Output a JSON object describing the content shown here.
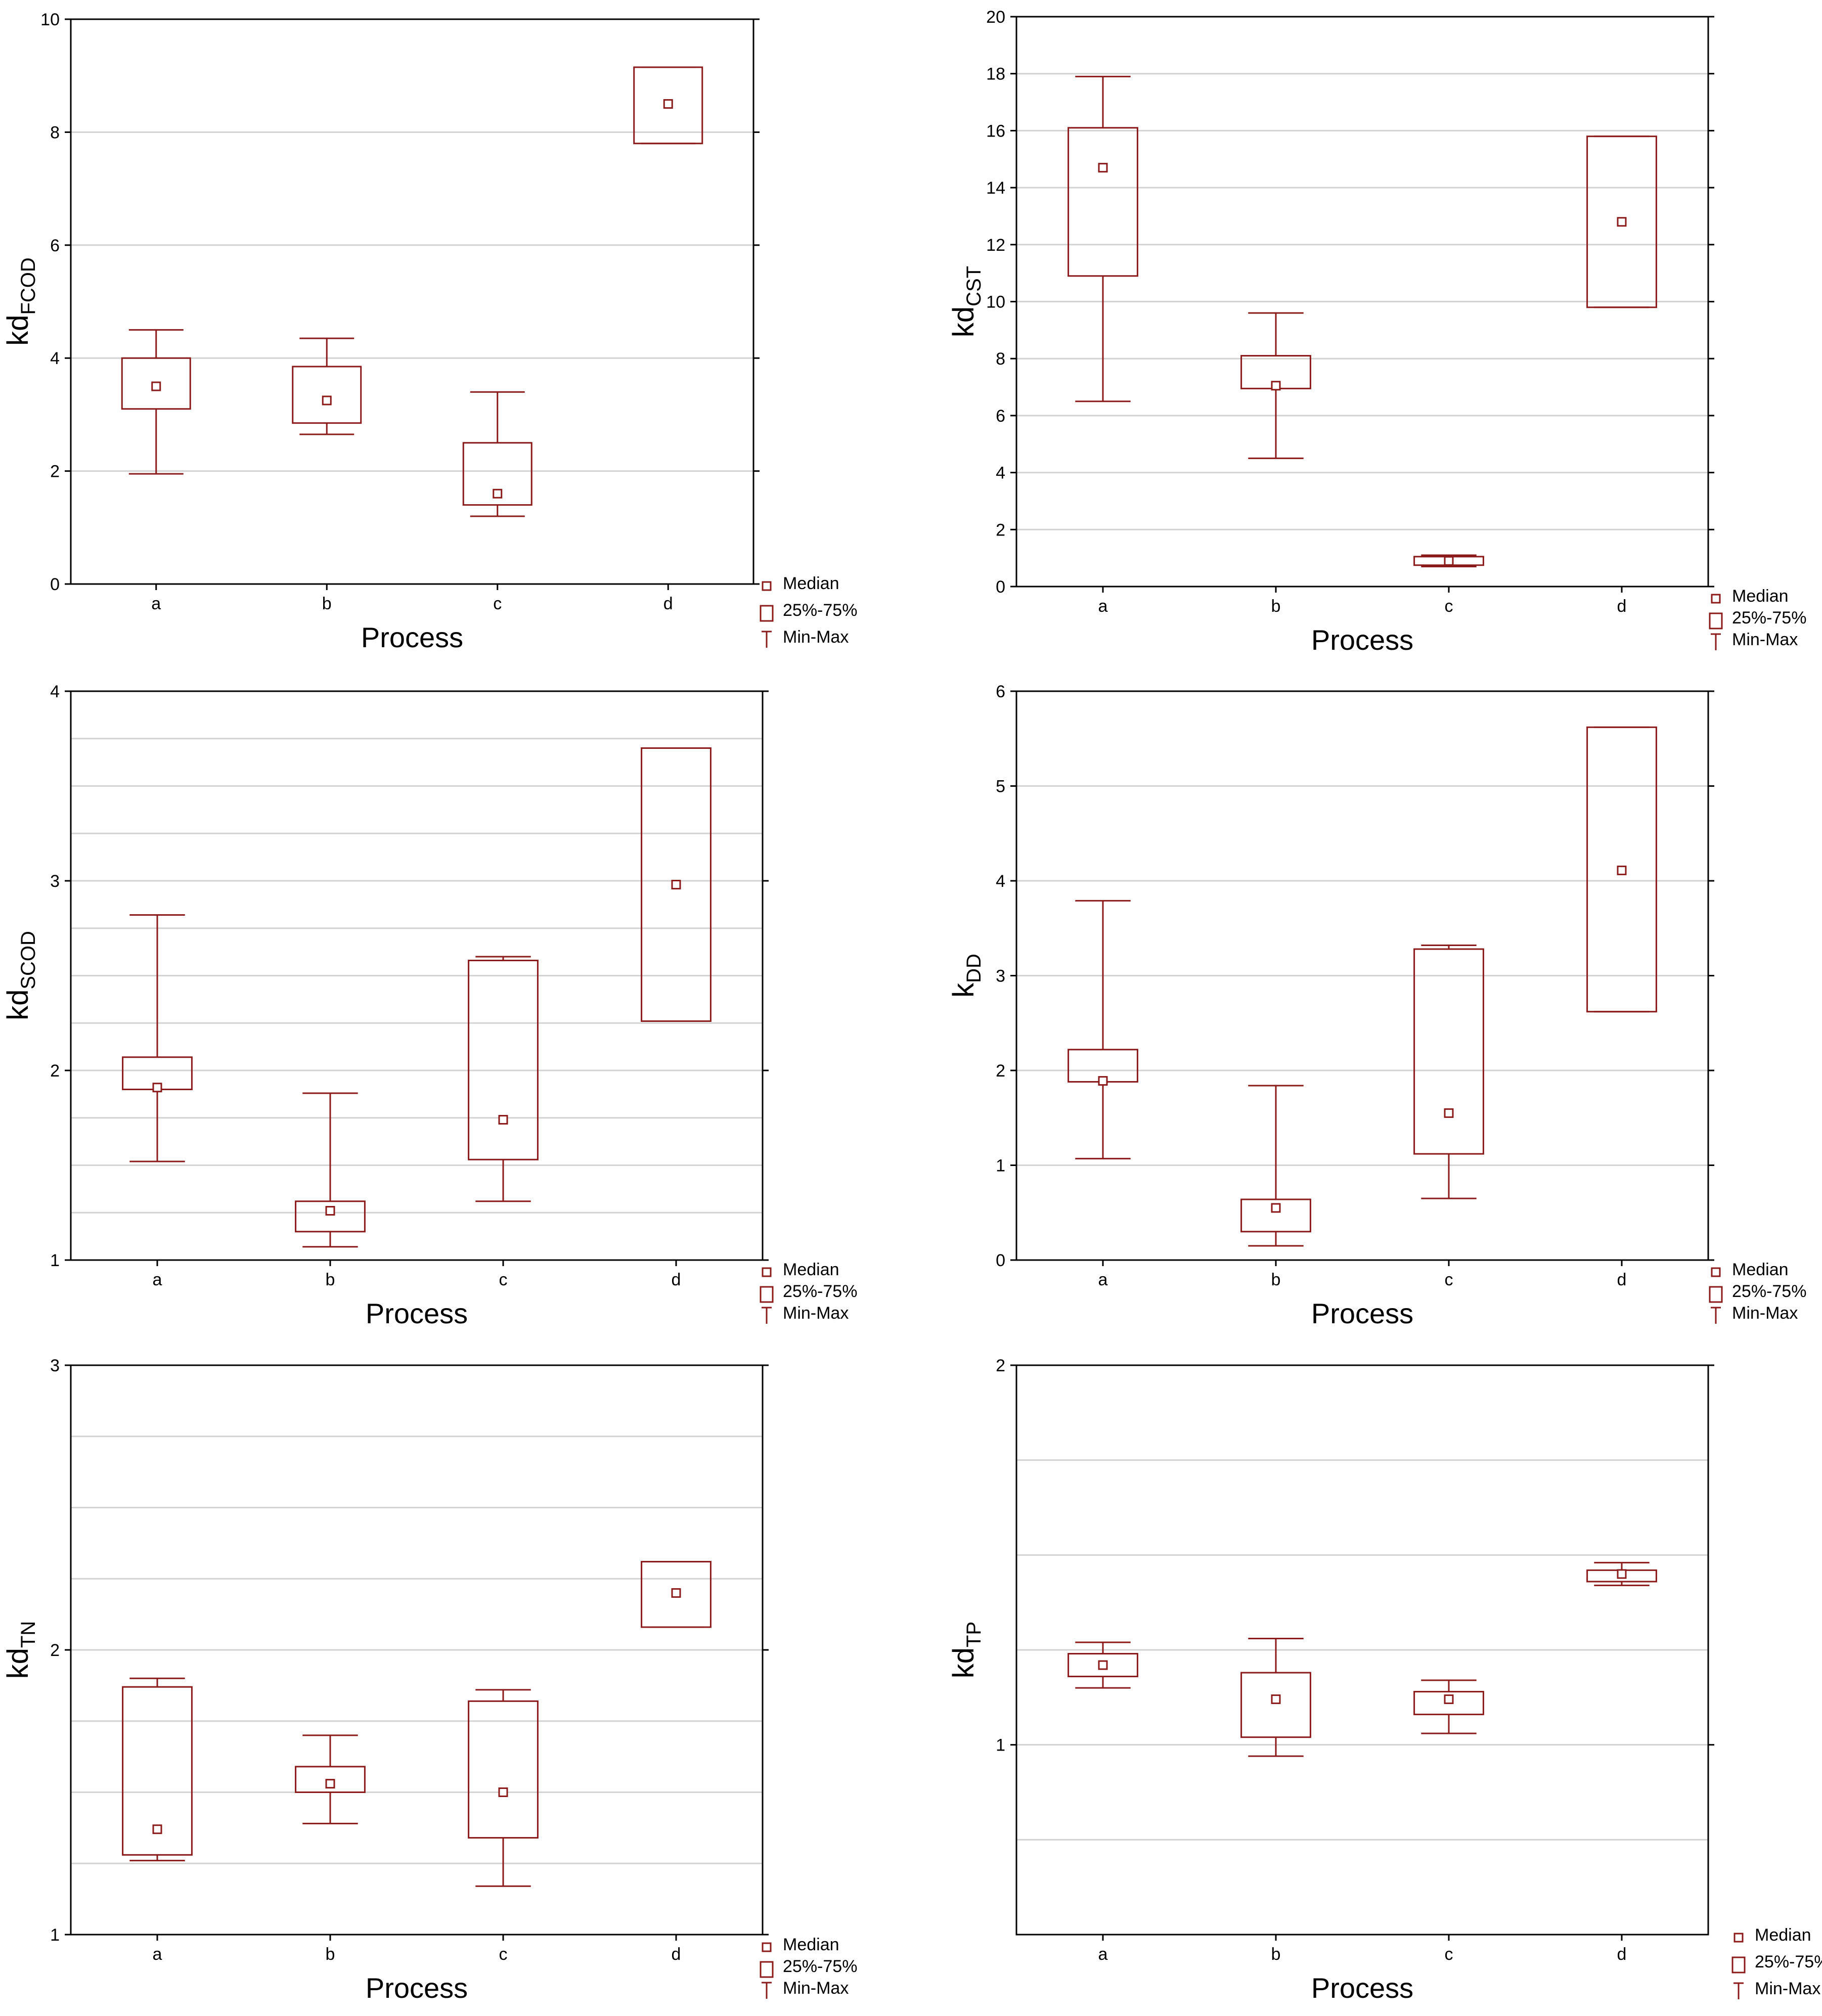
{
  "legend": {
    "median": "Median",
    "iqr": "25%-75%",
    "range": "Min-Max"
  },
  "colors": {
    "box": "#8b1a1a",
    "grid": "#d3d3d3",
    "axis": "#000000"
  },
  "chart_data": [
    {
      "type": "box",
      "title": "",
      "xlabel": "Process",
      "ylabel": {
        "main": "kd",
        "sub": "FCOD"
      },
      "ylim": [
        0,
        10
      ],
      "yticks": [
        0,
        2,
        4,
        6,
        8,
        10
      ],
      "ytick_labels": [
        "0",
        "2",
        "4",
        "6",
        "8",
        "10"
      ],
      "minor_grid": false,
      "categories": [
        "a",
        "b",
        "c",
        "d"
      ],
      "series": [
        {
          "name": "a",
          "min": 1.95,
          "q1": 3.1,
          "median": 3.5,
          "q3": 4.0,
          "max": 4.5
        },
        {
          "name": "b",
          "min": 2.65,
          "q1": 2.85,
          "median": 3.25,
          "q3": 3.85,
          "max": 4.35
        },
        {
          "name": "c",
          "min": 1.2,
          "q1": 1.4,
          "median": 1.6,
          "q3": 2.5,
          "max": 3.4
        },
        {
          "name": "d",
          "min": 7.8,
          "q1": 7.8,
          "median": 8.5,
          "q3": 9.15,
          "max": 9.15
        }
      ]
    },
    {
      "type": "box",
      "title": "",
      "xlabel": "Process",
      "ylabel": {
        "main": "kd",
        "sub": "CST"
      },
      "ylim": [
        0,
        20
      ],
      "yticks": [
        0,
        2,
        4,
        6,
        8,
        10,
        12,
        14,
        16,
        18,
        20
      ],
      "ytick_labels": [
        "0",
        "2",
        "4",
        "6",
        "8",
        "10",
        "12",
        "14",
        "16",
        "18",
        "20"
      ],
      "minor_grid": false,
      "categories": [
        "a",
        "b",
        "c",
        "d"
      ],
      "series": [
        {
          "name": "a",
          "min": 6.5,
          "q1": 10.9,
          "median": 14.7,
          "q3": 16.1,
          "max": 17.9
        },
        {
          "name": "b",
          "min": 4.5,
          "q1": 6.95,
          "median": 7.05,
          "q3": 8.1,
          "max": 9.6
        },
        {
          "name": "c",
          "min": 0.7,
          "q1": 0.75,
          "median": 0.9,
          "q3": 1.05,
          "max": 1.1
        },
        {
          "name": "d",
          "min": 9.8,
          "q1": 9.8,
          "median": 12.8,
          "q3": 15.8,
          "max": 15.8
        }
      ]
    },
    {
      "type": "box",
      "title": "",
      "xlabel": "Process",
      "ylabel": {
        "main": "kd",
        "sub": "SCOD"
      },
      "ylim": [
        1,
        4
      ],
      "yticks": [
        1,
        2,
        3,
        4
      ],
      "ytick_labels": [
        "1",
        "2",
        "3",
        "4"
      ],
      "minor_grid": true,
      "categories": [
        "a",
        "b",
        "c",
        "d"
      ],
      "series": [
        {
          "name": "a",
          "min": 1.52,
          "q1": 1.9,
          "median": 1.91,
          "q3": 2.07,
          "max": 2.82
        },
        {
          "name": "b",
          "min": 1.07,
          "q1": 1.15,
          "median": 1.26,
          "q3": 1.31,
          "max": 1.88
        },
        {
          "name": "c",
          "min": 1.31,
          "q1": 1.53,
          "median": 1.74,
          "q3": 2.58,
          "max": 2.6
        },
        {
          "name": "d",
          "min": 2.26,
          "q1": 2.26,
          "median": 2.98,
          "q3": 3.7,
          "max": 3.7
        }
      ]
    },
    {
      "type": "box",
      "title": "",
      "xlabel": "Process",
      "ylabel": {
        "main": "k",
        "sub": "DD"
      },
      "ylim": [
        0,
        6
      ],
      "yticks": [
        0,
        1,
        2,
        3,
        4,
        5,
        6
      ],
      "ytick_labels": [
        "0",
        "1",
        "2",
        "3",
        "4",
        "5",
        "6"
      ],
      "minor_grid": false,
      "categories": [
        "a",
        "b",
        "c",
        "d"
      ],
      "series": [
        {
          "name": "a",
          "min": 1.07,
          "q1": 1.88,
          "median": 1.89,
          "q3": 2.22,
          "max": 3.79
        },
        {
          "name": "b",
          "min": 0.15,
          "q1": 0.3,
          "median": 0.55,
          "q3": 0.64,
          "max": 1.84
        },
        {
          "name": "c",
          "min": 0.65,
          "q1": 1.12,
          "median": 1.55,
          "q3": 3.28,
          "max": 3.32
        },
        {
          "name": "d",
          "min": 2.62,
          "q1": 2.62,
          "median": 4.11,
          "q3": 5.62,
          "max": 5.62
        }
      ]
    },
    {
      "type": "box",
      "title": "",
      "xlabel": "Process",
      "ylabel": {
        "main": "kd",
        "sub": "TN"
      },
      "ylim": [
        1,
        3
      ],
      "yticks": [
        1,
        2,
        3
      ],
      "ytick_labels": [
        "1",
        "2",
        "3"
      ],
      "minor_grid": true,
      "categories": [
        "a",
        "b",
        "c",
        "d"
      ],
      "series": [
        {
          "name": "a",
          "min": 1.26,
          "q1": 1.28,
          "median": 1.37,
          "q3": 1.87,
          "max": 1.9
        },
        {
          "name": "b",
          "min": 1.39,
          "q1": 1.5,
          "median": 1.53,
          "q3": 1.59,
          "max": 1.7
        },
        {
          "name": "c",
          "min": 1.17,
          "q1": 1.34,
          "median": 1.5,
          "q3": 1.82,
          "max": 1.86
        },
        {
          "name": "d",
          "min": 2.08,
          "q1": 2.08,
          "median": 2.2,
          "q3": 2.31,
          "max": 2.31
        }
      ]
    },
    {
      "type": "box",
      "title": "",
      "xlabel": "Process",
      "ylabel": {
        "main": "kd",
        "sub": "TP"
      },
      "ylim": [
        0.5,
        2
      ],
      "yticks": [
        1,
        2
      ],
      "ytick_labels": [
        "1",
        "2"
      ],
      "minor_grid": true,
      "categories": [
        "a",
        "b",
        "c",
        "d"
      ],
      "series": [
        {
          "name": "a",
          "min": 1.15,
          "q1": 1.18,
          "median": 1.21,
          "q3": 1.24,
          "max": 1.27
        },
        {
          "name": "b",
          "min": 0.97,
          "q1": 1.02,
          "median": 1.12,
          "q3": 1.19,
          "max": 1.28
        },
        {
          "name": "c",
          "min": 1.03,
          "q1": 1.08,
          "median": 1.12,
          "q3": 1.14,
          "max": 1.17
        },
        {
          "name": "d",
          "min": 1.42,
          "q1": 1.43,
          "median": 1.45,
          "q3": 1.46,
          "max": 1.48
        }
      ]
    }
  ]
}
